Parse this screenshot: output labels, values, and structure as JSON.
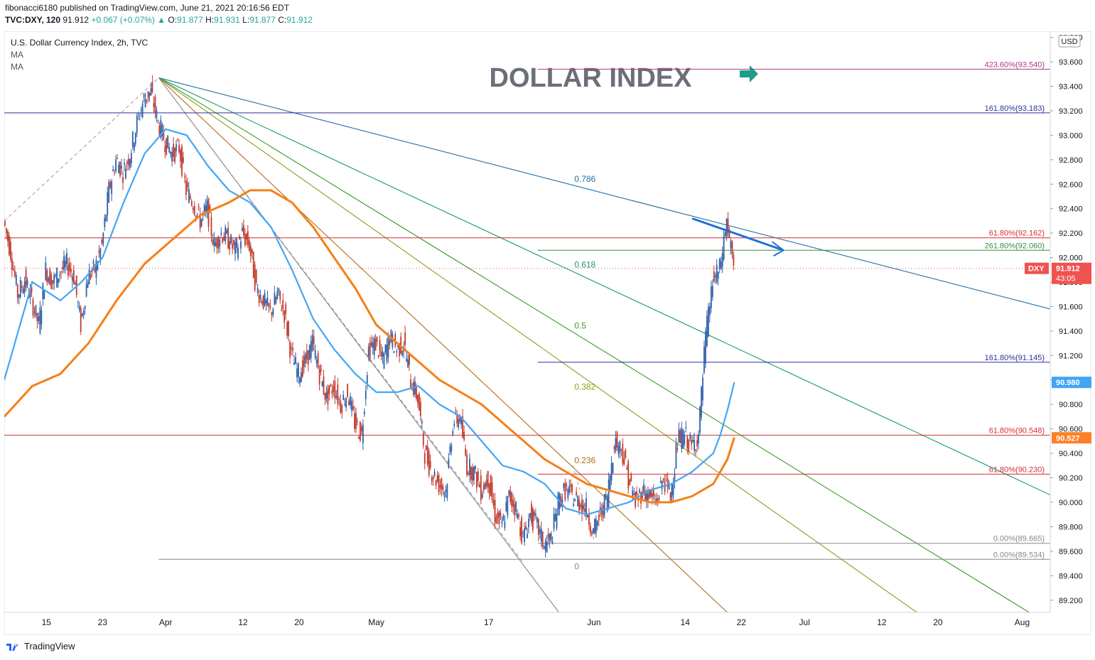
{
  "header": {
    "published": "fibonacci6180 published on TradingView.com, June 21, 2021 20:16:56 EDT",
    "symbol": "TVC:DXY, 120",
    "price": "91.912",
    "change": "+0.067 (+0.07%)",
    "open_label": "O:",
    "open": "91.877",
    "high_label": "H:",
    "high": "91.931",
    "low_label": "L:",
    "low": "91.877",
    "close_label": "C:",
    "close": "91.912"
  },
  "legend": {
    "title": "U.S. Dollar Currency Index, 2h, TVC",
    "ma1": "MA",
    "ma2": "MA"
  },
  "currency_label": "USD",
  "footer_brand": "TradingView",
  "chart_data": {
    "type": "line",
    "title": "DOLLAR INDEX",
    "ylim": [
      89.1,
      93.85
    ],
    "y_ticks": [
      89.2,
      89.4,
      89.6,
      89.8,
      90.0,
      90.2,
      90.4,
      90.6,
      90.8,
      91.0,
      91.2,
      91.4,
      91.6,
      91.8,
      92.0,
      92.2,
      92.4,
      92.6,
      92.8,
      93.0,
      93.2,
      93.4,
      93.6,
      93.8
    ],
    "y_tick_labels": [
      "89.200",
      "89.400",
      "89.600",
      "89.800",
      "90.000",
      "90.200",
      "90.400",
      "90.600",
      "90.800",
      "91.000",
      "91.200",
      "91.400",
      "91.600",
      "91.800",
      "92.000",
      "92.200",
      "92.400",
      "92.600",
      "92.800",
      "93.000",
      "93.200",
      "93.400",
      "93.600",
      "93.800"
    ],
    "x_range": [
      "2021-03-09",
      "2021-08-05"
    ],
    "x_ticks": [
      {
        "date": "2021-03-15",
        "label": "15"
      },
      {
        "date": "2021-03-23",
        "label": "23"
      },
      {
        "date": "2021-04-01",
        "label": "Apr"
      },
      {
        "date": "2021-04-12",
        "label": "12"
      },
      {
        "date": "2021-04-20",
        "label": "20"
      },
      {
        "date": "2021-05-01",
        "label": "May"
      },
      {
        "date": "2021-05-17",
        "label": "17"
      },
      {
        "date": "2021-06-01",
        "label": "Jun"
      },
      {
        "date": "2021-06-14",
        "label": "14"
      },
      {
        "date": "2021-06-22",
        "label": "22"
      },
      {
        "date": "2021-07-01",
        "label": "Jul"
      },
      {
        "date": "2021-07-12",
        "label": "12"
      },
      {
        "date": "2021-07-20",
        "label": "20"
      },
      {
        "date": "2021-08-01",
        "label": "Aug"
      }
    ],
    "price_path": [
      [
        "2021-03-09",
        92.3
      ],
      [
        "2021-03-10",
        92.05
      ],
      [
        "2021-03-11",
        91.7
      ],
      [
        "2021-03-12",
        91.82
      ],
      [
        "2021-03-13",
        91.65
      ],
      [
        "2021-03-14",
        91.45
      ],
      [
        "2021-03-15",
        91.9
      ],
      [
        "2021-03-16",
        91.8
      ],
      [
        "2021-03-17",
        91.88
      ],
      [
        "2021-03-18",
        91.95
      ],
      [
        "2021-03-19",
        91.85
      ],
      [
        "2021-03-20",
        91.45
      ],
      [
        "2021-03-21",
        91.85
      ],
      [
        "2021-03-22",
        91.9
      ],
      [
        "2021-03-23",
        92.1
      ],
      [
        "2021-03-24",
        92.55
      ],
      [
        "2021-03-25",
        92.8
      ],
      [
        "2021-03-26",
        92.7
      ],
      [
        "2021-03-27",
        92.85
      ],
      [
        "2021-03-28",
        93.1
      ],
      [
        "2021-03-29",
        93.3
      ],
      [
        "2021-03-30",
        93.35
      ],
      [
        "2021-03-31",
        93.1
      ],
      [
        "2021-04-01",
        92.95
      ],
      [
        "2021-04-02",
        92.85
      ],
      [
        "2021-04-03",
        92.9
      ],
      [
        "2021-04-04",
        92.55
      ],
      [
        "2021-04-05",
        92.45
      ],
      [
        "2021-04-06",
        92.3
      ],
      [
        "2021-04-07",
        92.4
      ],
      [
        "2021-04-08",
        92.1
      ],
      [
        "2021-04-09",
        92.2
      ],
      [
        "2021-04-10",
        92.15
      ],
      [
        "2021-04-11",
        92.05
      ],
      [
        "2021-04-12",
        92.2
      ],
      [
        "2021-04-13",
        92.1
      ],
      [
        "2021-04-14",
        91.75
      ],
      [
        "2021-04-15",
        91.65
      ],
      [
        "2021-04-16",
        91.55
      ],
      [
        "2021-04-17",
        91.7
      ],
      [
        "2021-04-18",
        91.55
      ],
      [
        "2021-04-19",
        91.2
      ],
      [
        "2021-04-20",
        91.05
      ],
      [
        "2021-04-21",
        91.15
      ],
      [
        "2021-04-22",
        91.3
      ],
      [
        "2021-04-23",
        91.05
      ],
      [
        "2021-04-24",
        90.85
      ],
      [
        "2021-04-25",
        90.95
      ],
      [
        "2021-04-26",
        90.8
      ],
      [
        "2021-04-27",
        90.9
      ],
      [
        "2021-04-28",
        90.65
      ],
      [
        "2021-04-29",
        90.55
      ],
      [
        "2021-04-30",
        91.25
      ],
      [
        "2021-05-01",
        91.3
      ],
      [
        "2021-05-02",
        91.15
      ],
      [
        "2021-05-03",
        91.35
      ],
      [
        "2021-05-04",
        91.25
      ],
      [
        "2021-05-05",
        91.3
      ],
      [
        "2021-05-06",
        91.0
      ],
      [
        "2021-05-07",
        90.85
      ],
      [
        "2021-05-08",
        90.4
      ],
      [
        "2021-05-09",
        90.25
      ],
      [
        "2021-05-10",
        90.15
      ],
      [
        "2021-05-11",
        90.1
      ],
      [
        "2021-05-12",
        90.65
      ],
      [
        "2021-05-13",
        90.7
      ],
      [
        "2021-05-14",
        90.3
      ],
      [
        "2021-05-15",
        90.25
      ],
      [
        "2021-05-16",
        90.1
      ],
      [
        "2021-05-17",
        90.2
      ],
      [
        "2021-05-18",
        89.9
      ],
      [
        "2021-05-19",
        89.8
      ],
      [
        "2021-05-20",
        90.05
      ],
      [
        "2021-05-21",
        89.95
      ],
      [
        "2021-05-22",
        89.7
      ],
      [
        "2021-05-23",
        89.9
      ],
      [
        "2021-05-24",
        89.8
      ],
      [
        "2021-05-25",
        89.65
      ],
      [
        "2021-05-26",
        89.7
      ],
      [
        "2021-05-27",
        90.0
      ],
      [
        "2021-05-28",
        90.1
      ],
      [
        "2021-05-29",
        90.05
      ],
      [
        "2021-05-30",
        90.0
      ],
      [
        "2021-05-31",
        89.95
      ],
      [
        "2021-06-01",
        89.75
      ],
      [
        "2021-06-02",
        89.9
      ],
      [
        "2021-06-03",
        90.05
      ],
      [
        "2021-06-04",
        90.5
      ],
      [
        "2021-06-05",
        90.45
      ],
      [
        "2021-06-06",
        90.2
      ],
      [
        "2021-06-07",
        90.0
      ],
      [
        "2021-06-08",
        90.1
      ],
      [
        "2021-06-09",
        90.05
      ],
      [
        "2021-06-10",
        90.0
      ],
      [
        "2021-06-11",
        90.2
      ],
      [
        "2021-06-12",
        90.05
      ],
      [
        "2021-06-13",
        90.5
      ],
      [
        "2021-06-14",
        90.55
      ],
      [
        "2021-06-15",
        90.45
      ],
      [
        "2021-06-16",
        90.55
      ],
      [
        "2021-06-17",
        91.35
      ],
      [
        "2021-06-18",
        91.8
      ],
      [
        "2021-06-19",
        91.9
      ],
      [
        "2021-06-20",
        92.3
      ],
      [
        "2021-06-21",
        91.91
      ]
    ],
    "ma_blue": [
      [
        "2021-03-09",
        91.0
      ],
      [
        "2021-03-13",
        91.8
      ],
      [
        "2021-03-17",
        91.65
      ],
      [
        "2021-03-20",
        91.8
      ],
      [
        "2021-03-23",
        92.0
      ],
      [
        "2021-03-26",
        92.45
      ],
      [
        "2021-03-29",
        92.85
      ],
      [
        "2021-04-01",
        93.05
      ],
      [
        "2021-04-04",
        93.0
      ],
      [
        "2021-04-07",
        92.75
      ],
      [
        "2021-04-10",
        92.55
      ],
      [
        "2021-04-13",
        92.45
      ],
      [
        "2021-04-16",
        92.25
      ],
      [
        "2021-04-19",
        91.9
      ],
      [
        "2021-04-22",
        91.5
      ],
      [
        "2021-04-25",
        91.25
      ],
      [
        "2021-04-28",
        91.05
      ],
      [
        "2021-05-01",
        90.9
      ],
      [
        "2021-05-04",
        90.9
      ],
      [
        "2021-05-07",
        90.95
      ],
      [
        "2021-05-10",
        90.8
      ],
      [
        "2021-05-13",
        90.7
      ],
      [
        "2021-05-16",
        90.5
      ],
      [
        "2021-05-19",
        90.3
      ],
      [
        "2021-05-22",
        90.25
      ],
      [
        "2021-05-25",
        90.15
      ],
      [
        "2021-05-28",
        89.95
      ],
      [
        "2021-05-31",
        89.9
      ],
      [
        "2021-06-03",
        89.95
      ],
      [
        "2021-06-06",
        90.0
      ],
      [
        "2021-06-09",
        90.1
      ],
      [
        "2021-06-12",
        90.15
      ],
      [
        "2021-06-15",
        90.25
      ],
      [
        "2021-06-18",
        90.4
      ],
      [
        "2021-06-19",
        90.55
      ],
      [
        "2021-06-20",
        90.75
      ],
      [
        "2021-06-21",
        90.98
      ]
    ],
    "ma_orange": [
      [
        "2021-03-09",
        90.7
      ],
      [
        "2021-03-13",
        90.95
      ],
      [
        "2021-03-17",
        91.05
      ],
      [
        "2021-03-21",
        91.3
      ],
      [
        "2021-03-25",
        91.65
      ],
      [
        "2021-03-29",
        91.95
      ],
      [
        "2021-04-02",
        92.15
      ],
      [
        "2021-04-06",
        92.35
      ],
      [
        "2021-04-10",
        92.45
      ],
      [
        "2021-04-13",
        92.55
      ],
      [
        "2021-04-16",
        92.55
      ],
      [
        "2021-04-19",
        92.45
      ],
      [
        "2021-04-22",
        92.25
      ],
      [
        "2021-04-25",
        92.0
      ],
      [
        "2021-04-28",
        91.75
      ],
      [
        "2021-05-01",
        91.45
      ],
      [
        "2021-05-04",
        91.3
      ],
      [
        "2021-05-07",
        91.15
      ],
      [
        "2021-05-10",
        91.0
      ],
      [
        "2021-05-13",
        90.9
      ],
      [
        "2021-05-16",
        90.8
      ],
      [
        "2021-05-19",
        90.65
      ],
      [
        "2021-05-22",
        90.5
      ],
      [
        "2021-05-25",
        90.35
      ],
      [
        "2021-05-28",
        90.25
      ],
      [
        "2021-05-31",
        90.15
      ],
      [
        "2021-06-03",
        90.1
      ],
      [
        "2021-06-06",
        90.05
      ],
      [
        "2021-06-09",
        90.0
      ],
      [
        "2021-06-12",
        90.0
      ],
      [
        "2021-06-15",
        90.05
      ],
      [
        "2021-06-18",
        90.15
      ],
      [
        "2021-06-20",
        90.35
      ],
      [
        "2021-06-21",
        90.53
      ]
    ],
    "gann_fan": {
      "origin": [
        "2021-03-31",
        93.47
      ],
      "rays": [
        {
          "label": "0.786",
          "end": [
            "2021-08-05",
            91.58
          ],
          "color": "#1f6fa8"
        },
        {
          "label": "0.618",
          "end": [
            "2021-08-05",
            90.06
          ],
          "color": "#1a9a6a"
        },
        {
          "label": "0.5",
          "end": [
            "2021-08-02",
            89.1
          ],
          "color": "#3a9a28"
        },
        {
          "label": "0.382",
          "end": [
            "2021-07-17",
            89.1
          ],
          "color": "#8ba01c"
        },
        {
          "label": "0.236",
          "end": [
            "2021-06-20",
            89.1
          ],
          "color": "#b26a1a"
        },
        {
          "label": "0",
          "end": [
            "2021-05-27",
            89.1
          ],
          "color": "#888888"
        }
      ]
    },
    "horizontal_levels": [
      {
        "label": "423.60%(93.540)",
        "value": 93.54,
        "from": "2021-05-24",
        "color": "#b0358a"
      },
      {
        "label": "161.80%(93.183)",
        "value": 93.183,
        "from": "2021-03-09",
        "color": "#2d2f9c"
      },
      {
        "label": "61.80%(92.162)",
        "value": 92.162,
        "from": "2021-03-09",
        "color": "#d32f2f"
      },
      {
        "label": "261.80%(92.060)",
        "value": 92.06,
        "from": "2021-05-24",
        "color": "#388e3c"
      },
      {
        "label": "161.80%(91.145)",
        "value": 91.145,
        "from": "2021-05-24",
        "color": "#2d2f9c"
      },
      {
        "label": "61.80%(90.548)",
        "value": 90.548,
        "from": "2021-03-09",
        "color": "#d32f2f"
      },
      {
        "label": "61.80%(90.230)",
        "value": 90.23,
        "from": "2021-05-24",
        "color": "#d32f2f"
      },
      {
        "label": "0.00%(89.665)",
        "value": 89.665,
        "from": "2021-05-24",
        "color": "#888888"
      },
      {
        "label": "0.00%(89.534)",
        "value": 89.534,
        "from": "2021-03-31",
        "color": "#888888"
      }
    ],
    "price_tags": [
      {
        "label": "DXY",
        "value": "91.912",
        "sub": "43:05",
        "y": 91.912,
        "color": "#ef5350"
      },
      {
        "label": "",
        "value": "90.980",
        "sub": "",
        "y": 90.98,
        "color": "#42a5f5"
      },
      {
        "label": "",
        "value": "90.527",
        "sub": "",
        "y": 90.527,
        "color": "#ff7f27"
      }
    ]
  }
}
